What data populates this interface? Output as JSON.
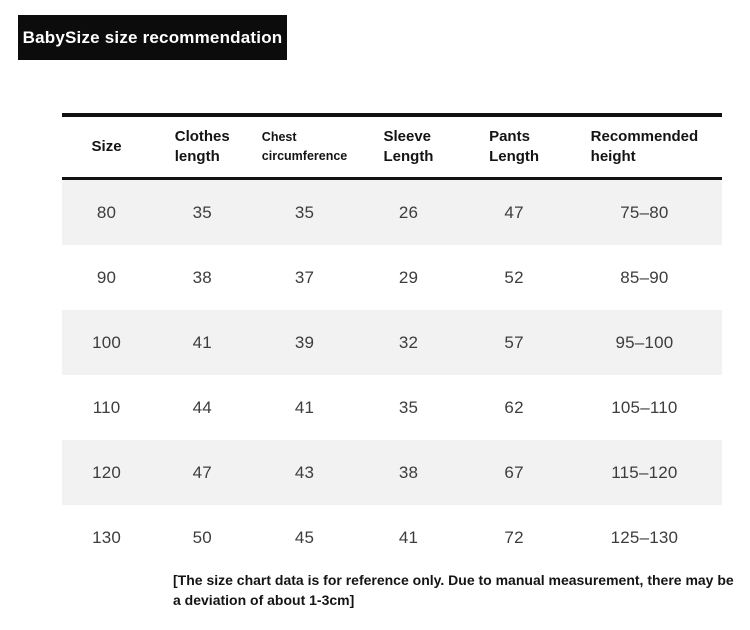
{
  "title": "BabySize size recommendation",
  "table": {
    "columns": [
      {
        "line1": "Size",
        "line2": ""
      },
      {
        "line1": "Clothes",
        "line2": "length"
      },
      {
        "line1": "Chest",
        "line2": "circumference"
      },
      {
        "line1": "Sleeve",
        "line2": "Length"
      },
      {
        "line1": "Pants",
        "line2": "Length"
      },
      {
        "line1": "Recommended",
        "line2": "height"
      }
    ],
    "rows": [
      [
        "80",
        "35",
        "35",
        "26",
        "47",
        "75–80"
      ],
      [
        "90",
        "38",
        "37",
        "29",
        "52",
        "85–90"
      ],
      [
        "100",
        "41",
        "39",
        "32",
        "57",
        "95–100"
      ],
      [
        "110",
        "44",
        "41",
        "35",
        "62",
        "105–110"
      ],
      [
        "120",
        "47",
        "43",
        "38",
        "67",
        "115–120"
      ],
      [
        "130",
        "50",
        "45",
        "41",
        "72",
        "125–130"
      ]
    ]
  },
  "footer": {
    "text": "[The size chart data is for reference only. Due to manual measurement, there may be a deviation of about 1-3cm]"
  },
  "colors": {
    "banner_bg": "#0c0c0c",
    "banner_text": "#ffffff",
    "stripe_row_bg": "#f2f2f2",
    "rule": "#111111",
    "header_text": "#141414",
    "data_text": "#3d3d3d"
  }
}
